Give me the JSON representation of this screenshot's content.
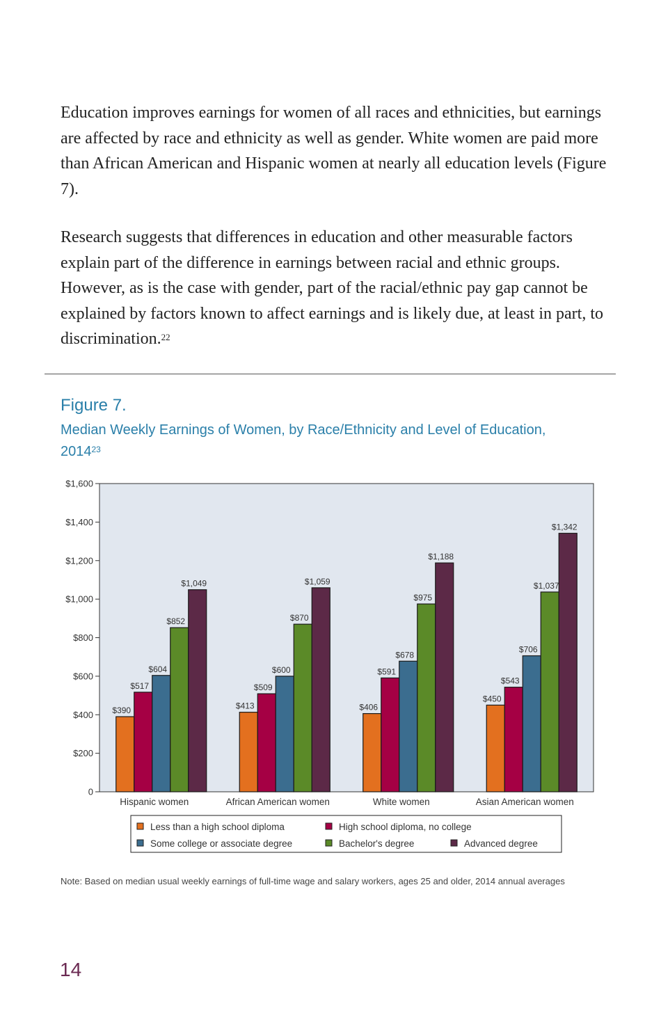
{
  "body": {
    "paragraph_1": "Education improves earnings for women of all races and ethnicities, but earnings are affected by race and ethnicity as well as gender. White women are paid more than African American and Hispanic women at nearly all education levels (Figure 7).",
    "paragraph_2": "Research suggests that differences in education and other measurable factors explain part of the difference in earnings between racial and ethnic groups. However, as is the case with gender, part of the racial/ethnic pay gap cannot be explained by factors known to affect earnings and is likely due, at least in part, to discrimination.",
    "paragraph_2_footnote": "22"
  },
  "figure": {
    "label": "Figure 7.",
    "title": "Median Weekly Earnings of Women, by Race/Ethnicity and Level of Education, 2014",
    "title_footnote": "23",
    "note": "Note: Based on median usual weekly earnings of full-time wage and salary workers, ages 25 and older, 2014 annual averages"
  },
  "page_number": "14",
  "colors": {
    "heading": "#2a7fa9",
    "plot_background": "#e1e7ef",
    "page_number": "#6b2a52"
  },
  "chart_data": {
    "type": "bar",
    "title": "",
    "xlabel": "",
    "ylabel": "",
    "ylim": [
      0,
      1600
    ],
    "yticks": [
      0,
      200,
      400,
      600,
      800,
      1000,
      1200,
      1400,
      1600
    ],
    "ytick_labels": [
      "0",
      "$200",
      "$400",
      "$600",
      "$800",
      "$1,000",
      "$1,200",
      "$1,400",
      "$1,600"
    ],
    "grid": false,
    "legend_placement": "bottom",
    "categories": [
      "Hispanic women",
      "African American women",
      "White women",
      "Asian American women"
    ],
    "series": [
      {
        "name": "Less than a high school diploma",
        "color": "#e3701f",
        "values": [
          390,
          413,
          406,
          450
        ],
        "labels": [
          "$390",
          "$413",
          "$406",
          "$450"
        ]
      },
      {
        "name": "High school diploma, no college",
        "color": "#a50044",
        "values": [
          517,
          509,
          591,
          543
        ],
        "labels": [
          "$517",
          "$509",
          "$591",
          "$543"
        ]
      },
      {
        "name": "Some college or associate degree",
        "color": "#3b6d8f",
        "values": [
          604,
          600,
          678,
          706
        ],
        "labels": [
          "$604",
          "$600",
          "$678",
          "$706"
        ]
      },
      {
        "name": "Bachelor's degree",
        "color": "#5b8a28",
        "values": [
          852,
          870,
          975,
          1037
        ],
        "labels": [
          "$852",
          "$870",
          "$975",
          "$1,037"
        ]
      },
      {
        "name": "Advanced degree",
        "color": "#5c2947",
        "values": [
          1049,
          1059,
          1188,
          1342
        ],
        "labels": [
          "$1,049",
          "$1,059",
          "$1,188",
          "$1,342"
        ]
      }
    ]
  }
}
